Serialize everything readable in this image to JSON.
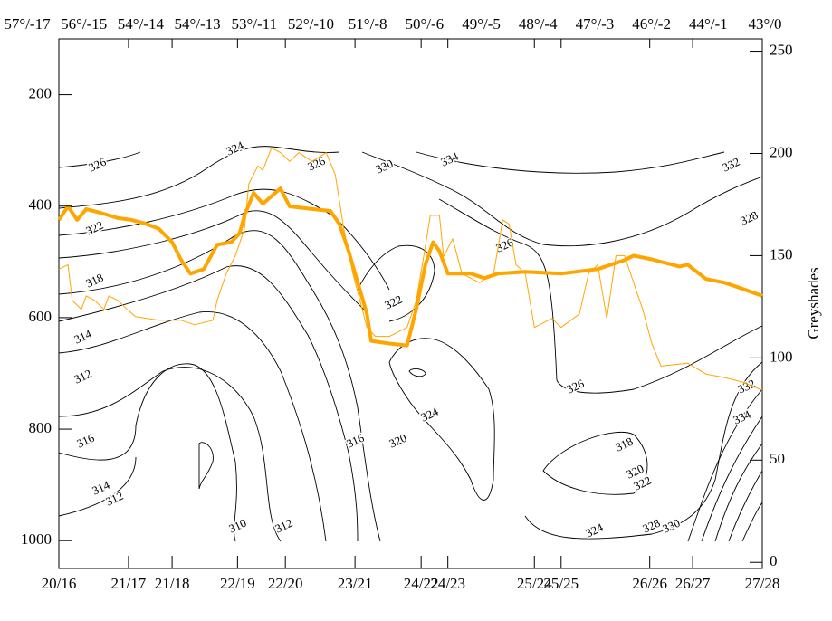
{
  "chart_data": {
    "type": "line",
    "top_labels": [
      "57°/-17",
      "56°/-15",
      "54°/-14",
      "54°/-13",
      "53°/-11",
      "52°/-10",
      "51°/-8",
      "50°/-6",
      "49°/-5",
      "48°/-4",
      "47°/-3",
      "46°/-2",
      "44°/-1",
      "43°/0"
    ],
    "xlim": [
      0,
      100
    ],
    "xticks": [
      {
        "value": 0,
        "label": "20/16"
      },
      {
        "value": 9.9,
        "label": "21/17"
      },
      {
        "value": 16.1,
        "label": "21/18"
      },
      {
        "value": 25.4,
        "label": "22/19"
      },
      {
        "value": 32.2,
        "label": "22/20"
      },
      {
        "value": 42.1,
        "label": "23/21"
      },
      {
        "value": 51.5,
        "label": "24/22"
      },
      {
        "value": 55.3,
        "label": "24/23"
      },
      {
        "value": 67.6,
        "label": "25/24"
      },
      {
        "value": 71.4,
        "label": "25/25"
      },
      {
        "value": 84,
        "label": "26/26"
      },
      {
        "value": 90.1,
        "label": "26/27"
      },
      {
        "value": 100,
        "label": "27/28"
      }
    ],
    "ylim": [
      1050,
      100
    ],
    "yticks": [
      200,
      400,
      600,
      800,
      1000
    ],
    "y2label": "Greyshades",
    "y2lim": [
      -3,
      256
    ],
    "y2ticks": [
      0,
      50,
      100,
      150,
      200,
      250
    ],
    "series": [
      {
        "color": "#ffa500",
        "axis": "y2",
        "width": 4,
        "x": [
          0,
          1.3,
          2.6,
          3.9,
          5.8,
          8.4,
          10.3,
          12.2,
          14.2,
          16.1,
          17.4,
          18.7,
          20.6,
          22.5,
          24.5,
          25.7,
          26.4,
          27.7,
          29,
          31.5,
          32.8,
          36,
          38.6,
          39.9,
          41.2,
          42.5,
          43.8,
          44.4,
          47,
          49.5,
          50.8,
          52.1,
          53.2,
          54.1,
          55.3,
          58.6,
          60.5,
          62.4,
          66.3,
          71.4,
          76.6,
          80.4,
          81.7,
          84.3,
          88.2,
          89.4,
          92,
          94.6,
          96.5,
          100
        ],
        "values": [
          167.5,
          174.1,
          167.5,
          172.8,
          171.1,
          168.4,
          167.5,
          165.8,
          163.2,
          156.6,
          147.8,
          141.2,
          143.4,
          155.3,
          156.6,
          161,
          169.7,
          180.7,
          175.4,
          182.9,
          174.1,
          172.8,
          171.9,
          165.4,
          152.2,
          136.8,
          121.5,
          108.3,
          107,
          106.1,
          123.7,
          145.6,
          156.6,
          152.2,
          141.2,
          141.2,
          139,
          141.2,
          142.1,
          141.2,
          143.4,
          147.8,
          150,
          148.2,
          144.7,
          145.6,
          138.6,
          136.8,
          134.6,
          130.3
        ]
      },
      {
        "color": "#ffa500",
        "axis": "y2",
        "width": 1,
        "x": [
          0,
          1.3,
          1.9,
          3.2,
          3.9,
          5.1,
          6.4,
          7.1,
          8.4,
          9.7,
          10.9,
          14.2,
          17.4,
          19.3,
          21.9,
          22.5,
          23.8,
          25.1,
          26.4,
          27,
          28.3,
          29,
          30.2,
          31.5,
          32.8,
          34.1,
          36,
          38,
          39.3,
          40.5,
          41.8,
          43.8,
          45,
          47,
          49.5,
          50.8,
          52.1,
          52.8,
          54.1,
          54.7,
          56,
          57.3,
          59.8,
          61.8,
          63.1,
          64,
          65,
          66.3,
          67.6,
          70.1,
          71.4,
          74,
          75.3,
          76.6,
          77.9,
          79.2,
          80.4,
          83,
          84.3,
          85.6,
          89.4,
          92,
          94.6,
          97.2,
          100
        ],
        "values": [
          143.4,
          145.6,
          128.1,
          123.7,
          130.3,
          128.1,
          123.7,
          130.3,
          128.1,
          123.7,
          120.2,
          118.4,
          118.4,
          116.2,
          118.4,
          128.1,
          141.2,
          150,
          163.2,
          185.1,
          193.9,
          191.7,
          202.6,
          200.4,
          196.1,
          200.4,
          196.1,
          200.4,
          189.5,
          163.2,
          141.2,
          114.9,
          110.5,
          110.5,
          114.9,
          127.9,
          154.4,
          169.7,
          169.7,
          149.6,
          158.3,
          141.2,
          136.8,
          141.2,
          167.5,
          165.4,
          145.6,
          141.2,
          114.9,
          119.3,
          114.9,
          121.5,
          141.2,
          145.6,
          119.3,
          150,
          150,
          123.7,
          107,
          96,
          97.4,
          92.1,
          90.4,
          88.2,
          84.2
        ]
      }
    ],
    "contour_labels": [
      326,
      324,
      326,
      330,
      334,
      332,
      328,
      322,
      326,
      318,
      322,
      314,
      312,
      326,
      324,
      316,
      320,
      316,
      318,
      314,
      312,
      320,
      322,
      310,
      312,
      324,
      328,
      330,
      332,
      334
    ]
  }
}
